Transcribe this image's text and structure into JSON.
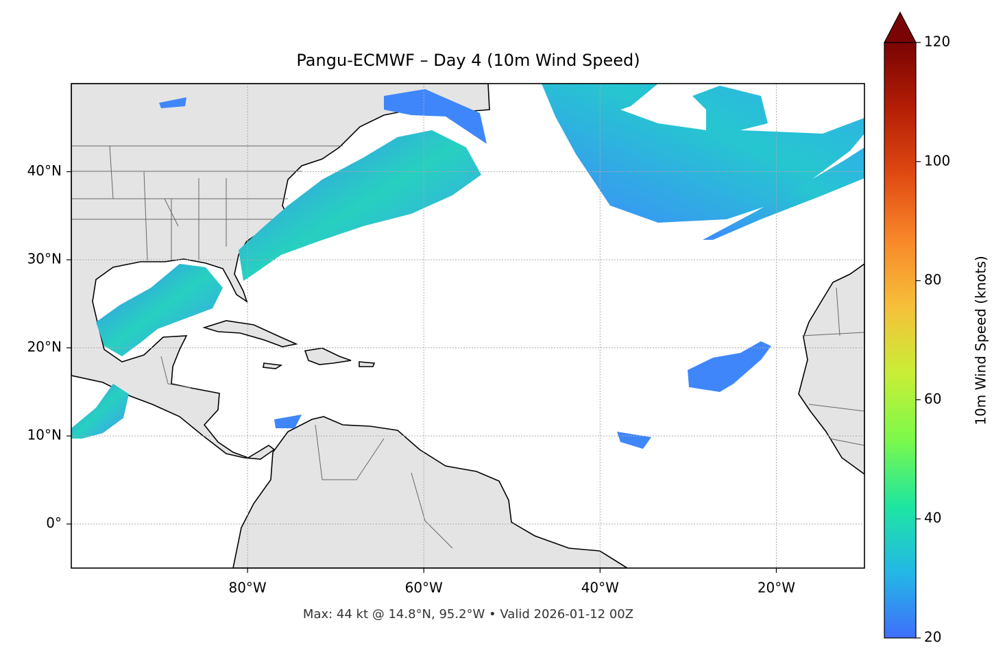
{
  "chart_data": {
    "type": "map",
    "title": "Pangu-ECMWF – Day 4 (10m Wind Speed)",
    "xlim": [
      -100,
      -10
    ],
    "ylim": [
      -5,
      50
    ],
    "xticks": [
      {
        "value": -80,
        "label": "80°W"
      },
      {
        "value": -60,
        "label": "60°W"
      },
      {
        "value": -40,
        "label": "40°W"
      },
      {
        "value": -20,
        "label": "20°W"
      }
    ],
    "yticks": [
      {
        "value": 0,
        "label": "0°"
      },
      {
        "value": 10,
        "label": "10°N"
      },
      {
        "value": 20,
        "label": "20°N"
      },
      {
        "value": 30,
        "label": "30°N"
      },
      {
        "value": 40,
        "label": "40°N"
      }
    ],
    "grid": true,
    "colorbar": {
      "label": "10m Wind Speed (knots)",
      "lim": [
        20,
        120
      ],
      "ticks": [
        20,
        40,
        60,
        80,
        100,
        120
      ],
      "extend": "max",
      "colormap": [
        "#3f6ffb",
        "#23b8e6",
        "#1ee6a0",
        "#7cf94a",
        "#c9ee36",
        "#f6c03a",
        "#f9882a",
        "#e04a12",
        "#b41e05",
        "#7a0403"
      ]
    },
    "annotation": "Max: 44 kt @ 14.8°N, 95.2°W • Valid 2026-01-12 00Z"
  }
}
